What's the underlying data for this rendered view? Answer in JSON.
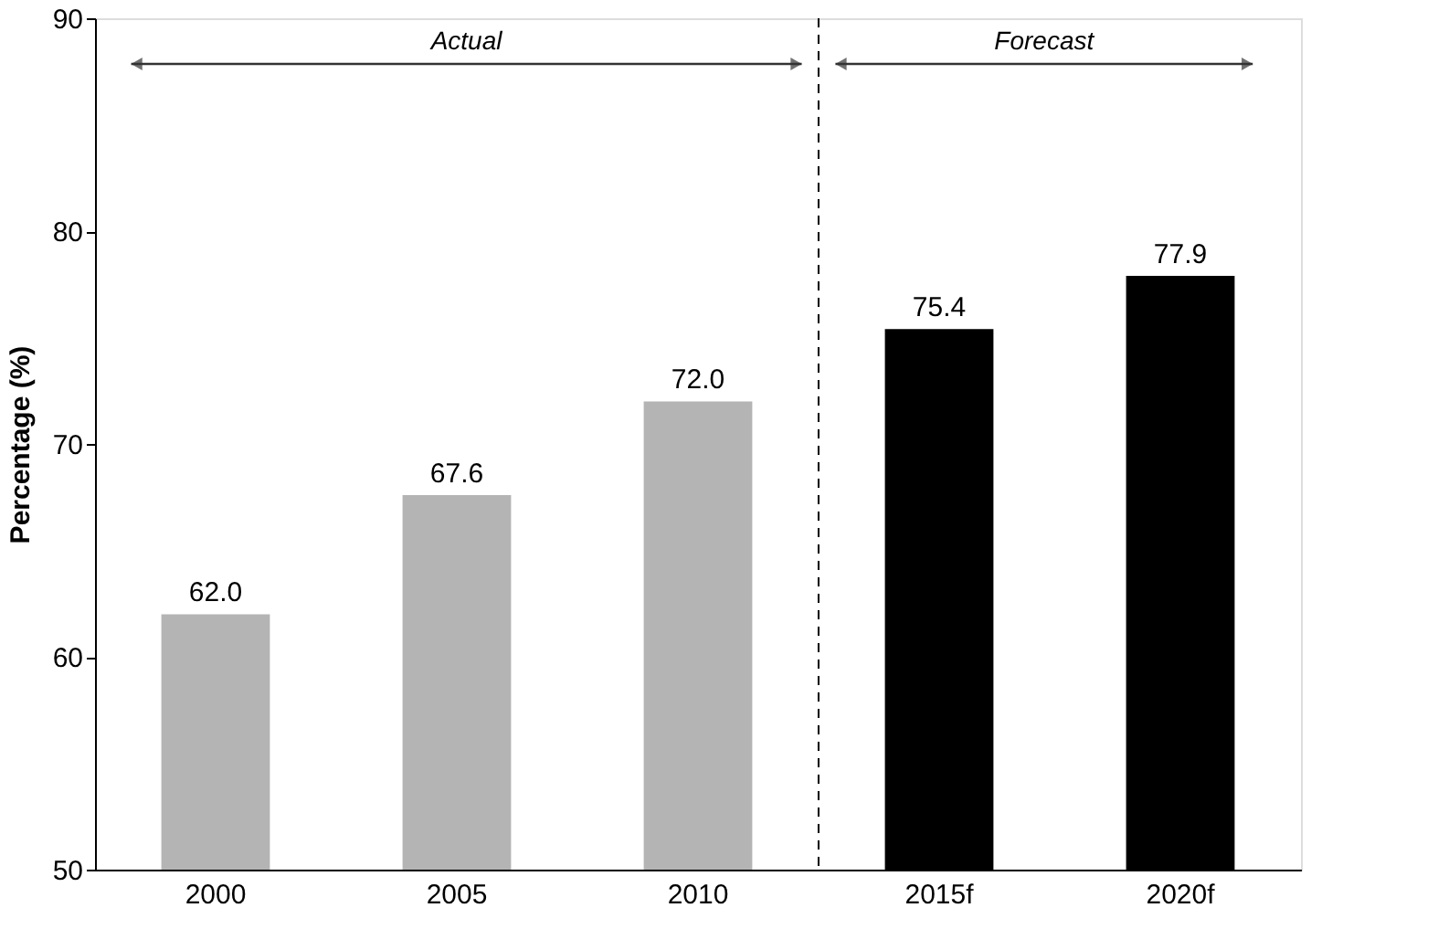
{
  "chart_data": {
    "type": "bar",
    "ylabel": "Percentage (%)",
    "categories": [
      "2000",
      "2005",
      "2010",
      "2015f",
      "2020f"
    ],
    "values": [
      62.0,
      67.6,
      72.0,
      75.4,
      77.9
    ],
    "colors": [
      "#b4b4b4",
      "#b4b4b4",
      "#b4b4b4",
      "#000000",
      "#000000"
    ],
    "value_labels": [
      "62.0",
      "67.6",
      "72.0",
      "75.4",
      "77.9"
    ],
    "ylim": [
      50,
      90
    ],
    "yticks": [
      50,
      60,
      70,
      80,
      90
    ],
    "grid": false,
    "annotations": [
      "Actual",
      "Forecast"
    ]
  }
}
